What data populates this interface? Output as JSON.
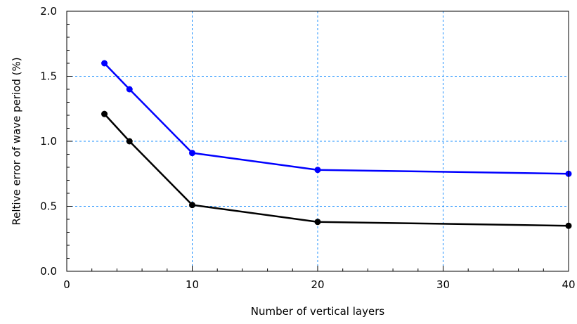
{
  "chart_data": {
    "type": "line",
    "title": "",
    "xlabel": "Number of vertical layers",
    "ylabel": "Reltive error of wave period (%)",
    "xlim": [
      0,
      40
    ],
    "ylim": [
      0.0,
      2.0
    ],
    "x_ticks": [
      "0",
      "10",
      "20",
      "30",
      "40"
    ],
    "y_ticks": [
      "0.0",
      "0.5",
      "1.0",
      "1.5",
      "2.0"
    ],
    "x_tick_values": [
      0,
      10,
      20,
      30,
      40
    ],
    "y_tick_values": [
      0.0,
      0.5,
      1.0,
      1.5,
      2.0
    ],
    "x_minor_step": 2,
    "y_minor_step": 0.1,
    "grid": true,
    "grid_style": "dashed",
    "grid_color": "#1e90ff",
    "x": [
      3,
      5,
      10,
      20,
      40
    ],
    "series": [
      {
        "color": "#0000ff",
        "values": [
          1.6,
          1.4,
          0.91,
          0.78,
          0.75
        ]
      },
      {
        "color": "#000000",
        "values": [
          1.21,
          1.0,
          0.51,
          0.38,
          0.35
        ]
      }
    ]
  }
}
